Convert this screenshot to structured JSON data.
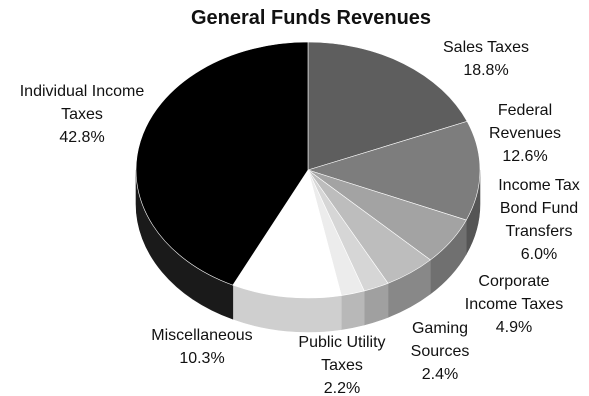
{
  "chart_data": {
    "type": "pie",
    "title": "General Funds Revenues",
    "slices": [
      {
        "label_lines": [
          "Sales Taxes",
          "18.8%"
        ],
        "value": 18.8,
        "color": "#5e5e5e",
        "side": "#3a3a3a"
      },
      {
        "label_lines": [
          "Federal",
          "Revenues",
          "12.6%"
        ],
        "value": 12.6,
        "color": "#7d7d7d",
        "side": "#555555"
      },
      {
        "label_lines": [
          "Income Tax",
          "Bond Fund",
          "Transfers",
          "6.0%"
        ],
        "value": 6.0,
        "color": "#a3a3a3",
        "side": "#707070"
      },
      {
        "label_lines": [
          "Corporate",
          "Income Taxes",
          "4.9%"
        ],
        "value": 4.9,
        "color": "#bdbdbd",
        "side": "#888888"
      },
      {
        "label_lines": [
          "Gaming",
          "Sources",
          "2.4%"
        ],
        "value": 2.4,
        "color": "#d6d6d6",
        "side": "#a0a0a0"
      },
      {
        "label_lines": [
          "Public Utility",
          "Taxes",
          "2.2%"
        ],
        "value": 2.2,
        "color": "#ececec",
        "side": "#b8b8b8"
      },
      {
        "label_lines": [
          "Miscellaneous",
          "10.3%"
        ],
        "value": 10.3,
        "color": "#ffffff",
        "side": "#cfcfcf"
      },
      {
        "label_lines": [
          "Individual Income",
          "Taxes",
          "42.8%"
        ],
        "value": 42.8,
        "color": "#000000",
        "side": "#1a1a1a"
      }
    ]
  }
}
